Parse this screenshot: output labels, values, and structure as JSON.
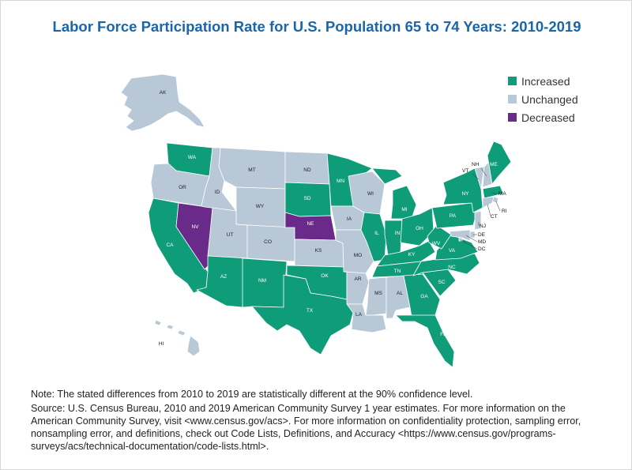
{
  "title": "Labor Force Participation Rate for U.S. Population 65 to 74 Years: 2010-2019",
  "legend": [
    {
      "label": "Increased",
      "color": "#0f9c79"
    },
    {
      "label": "Unchanged",
      "color": "#b8c8d6"
    },
    {
      "label": "Decreased",
      "color": "#6a2a8a"
    }
  ],
  "colors": {
    "increased": "#0f9c79",
    "unchanged": "#b8c8d6",
    "decreased": "#6a2a8a"
  },
  "states": [
    {
      "abbr": "AK",
      "status": "unchanged"
    },
    {
      "abbr": "HI",
      "status": "unchanged"
    },
    {
      "abbr": "WA",
      "status": "increased"
    },
    {
      "abbr": "OR",
      "status": "unchanged"
    },
    {
      "abbr": "CA",
      "status": "increased"
    },
    {
      "abbr": "NV",
      "status": "decreased"
    },
    {
      "abbr": "ID",
      "status": "unchanged"
    },
    {
      "abbr": "MT",
      "status": "unchanged"
    },
    {
      "abbr": "WY",
      "status": "unchanged"
    },
    {
      "abbr": "UT",
      "status": "unchanged"
    },
    {
      "abbr": "AZ",
      "status": "increased"
    },
    {
      "abbr": "CO",
      "status": "unchanged"
    },
    {
      "abbr": "NM",
      "status": "increased"
    },
    {
      "abbr": "ND",
      "status": "unchanged"
    },
    {
      "abbr": "SD",
      "status": "increased"
    },
    {
      "abbr": "NE",
      "status": "decreased"
    },
    {
      "abbr": "KS",
      "status": "unchanged"
    },
    {
      "abbr": "OK",
      "status": "increased"
    },
    {
      "abbr": "TX",
      "status": "increased"
    },
    {
      "abbr": "MN",
      "status": "increased"
    },
    {
      "abbr": "IA",
      "status": "unchanged"
    },
    {
      "abbr": "MO",
      "status": "unchanged"
    },
    {
      "abbr": "AR",
      "status": "unchanged"
    },
    {
      "abbr": "LA",
      "status": "unchanged"
    },
    {
      "abbr": "WI",
      "status": "unchanged"
    },
    {
      "abbr": "IL",
      "status": "increased"
    },
    {
      "abbr": "MI",
      "status": "increased"
    },
    {
      "abbr": "IN",
      "status": "increased"
    },
    {
      "abbr": "OH",
      "status": "increased"
    },
    {
      "abbr": "KY",
      "status": "increased"
    },
    {
      "abbr": "TN",
      "status": "increased"
    },
    {
      "abbr": "MS",
      "status": "unchanged"
    },
    {
      "abbr": "AL",
      "status": "unchanged"
    },
    {
      "abbr": "GA",
      "status": "increased"
    },
    {
      "abbr": "FL",
      "status": "increased"
    },
    {
      "abbr": "SC",
      "status": "increased"
    },
    {
      "abbr": "NC",
      "status": "increased"
    },
    {
      "abbr": "VA",
      "status": "increased"
    },
    {
      "abbr": "WV",
      "status": "increased"
    },
    {
      "abbr": "PA",
      "status": "increased"
    },
    {
      "abbr": "NY",
      "status": "increased"
    },
    {
      "abbr": "VT",
      "status": "unchanged"
    },
    {
      "abbr": "NH",
      "status": "unchanged"
    },
    {
      "abbr": "ME",
      "status": "increased"
    },
    {
      "abbr": "MA",
      "status": "increased"
    },
    {
      "abbr": "RI",
      "status": "unchanged"
    },
    {
      "abbr": "CT",
      "status": "unchanged"
    },
    {
      "abbr": "NJ",
      "status": "unchanged"
    },
    {
      "abbr": "DE",
      "status": "unchanged"
    },
    {
      "abbr": "MD",
      "status": "unchanged"
    },
    {
      "abbr": "DC",
      "status": "unchanged"
    }
  ],
  "notes": {
    "note": "Note: The stated differences from 2010 to 2019 are statistically different at the 90% confidence level.",
    "source": "Source: U.S. Census Bureau, 2010 and 2019 American Community Survey 1 year estimates. For more information on the American Community Survey, visit <www.census.gov/acs>. For more information on confidentiality protection, sampling error, nonsampling error, and definitions, check out Code Lists, Definitions, and Accuracy <https://www.census.gov/programs-surveys/acs/technical-documentation/code-lists.html>."
  }
}
